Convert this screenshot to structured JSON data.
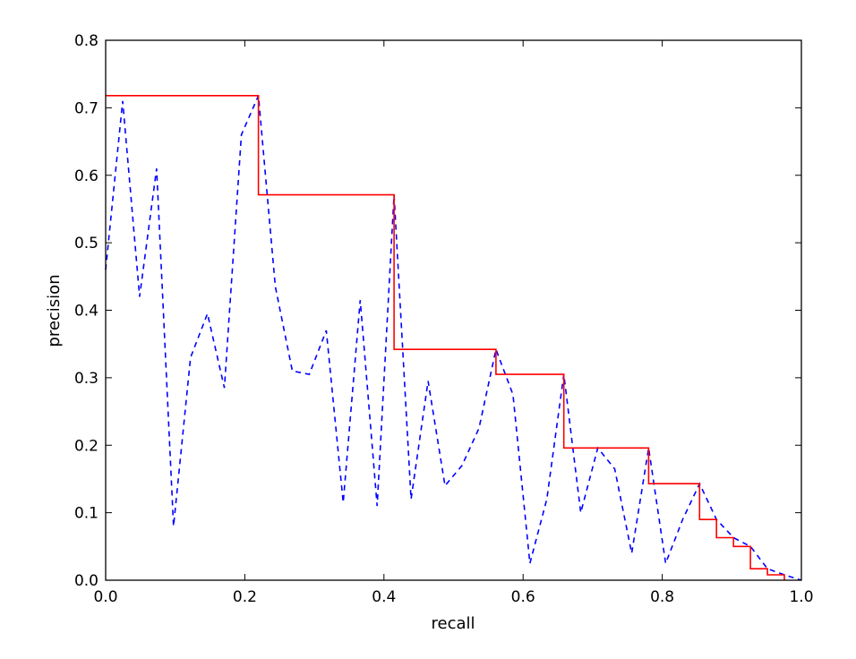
{
  "chart_data": {
    "type": "line",
    "title": "",
    "xlabel": "recall",
    "ylabel": "precision",
    "xlim": [
      0.0,
      1.0
    ],
    "ylim": [
      0.0,
      0.8
    ],
    "grid": false,
    "legend": "none",
    "xticks": [
      "0.0",
      "0.2",
      "0.4",
      "0.6",
      "0.8",
      "1.0"
    ],
    "yticks": [
      "0.0",
      "0.1",
      "0.2",
      "0.3",
      "0.4",
      "0.5",
      "0.6",
      "0.7",
      "0.8"
    ],
    "series": [
      {
        "style": "dashed",
        "color": "#0000ff",
        "x": [
          0.0,
          0.0244,
          0.0488,
          0.0732,
          0.0976,
          0.122,
          0.1463,
          0.1707,
          0.1951,
          0.2195,
          0.2439,
          0.2683,
          0.2927,
          0.3171,
          0.3415,
          0.3659,
          0.3902,
          0.4146,
          0.439,
          0.4634,
          0.4878,
          0.5122,
          0.5366,
          0.561,
          0.5854,
          0.6098,
          0.6341,
          0.6585,
          0.6829,
          0.7073,
          0.7317,
          0.7561,
          0.7805,
          0.8049,
          0.8293,
          0.8537,
          0.878,
          0.9024,
          0.9268,
          0.9512,
          0.9756,
          1.0
        ],
        "y": [
          0.46,
          0.71,
          0.42,
          0.61,
          0.08,
          0.33,
          0.395,
          0.285,
          0.66,
          0.718,
          0.435,
          0.31,
          0.305,
          0.37,
          0.115,
          0.415,
          0.11,
          0.571,
          0.12,
          0.295,
          0.14,
          0.17,
          0.225,
          0.342,
          0.275,
          0.025,
          0.12,
          0.305,
          0.1,
          0.196,
          0.165,
          0.04,
          0.196,
          0.025,
          0.09,
          0.143,
          0.09,
          0.063,
          0.05,
          0.017,
          0.008,
          0.0
        ]
      },
      {
        "style": "step",
        "color": "#ff0000",
        "x": [
          0.0,
          0.2195,
          0.2195,
          0.4146,
          0.4146,
          0.561,
          0.561,
          0.6585,
          0.6585,
          0.7805,
          0.7805,
          0.8537,
          0.8537,
          0.878,
          0.878,
          0.9024,
          0.9024,
          0.9268,
          0.9268,
          0.9512,
          0.9512,
          0.9756,
          0.9756
        ],
        "y": [
          0.718,
          0.718,
          0.571,
          0.571,
          0.342,
          0.342,
          0.305,
          0.305,
          0.196,
          0.196,
          0.143,
          0.143,
          0.09,
          0.09,
          0.063,
          0.063,
          0.05,
          0.05,
          0.017,
          0.017,
          0.008,
          0.008,
          0.0
        ]
      }
    ]
  }
}
